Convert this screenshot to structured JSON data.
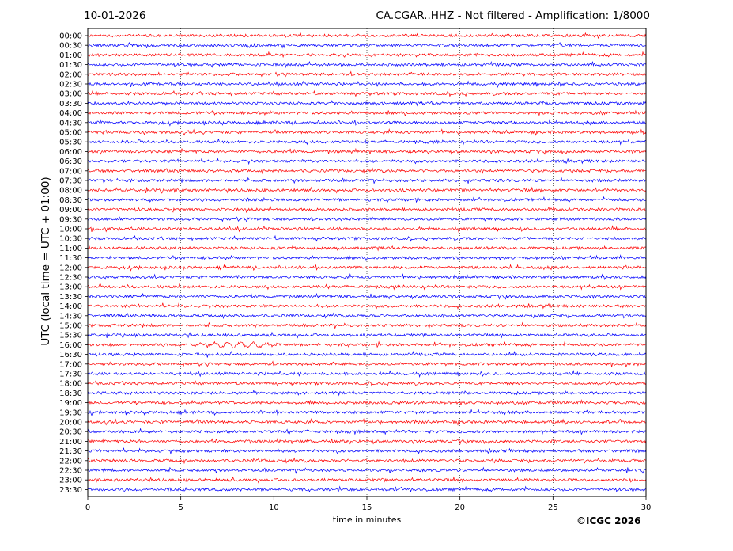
{
  "header": {
    "date": "10-01-2026",
    "title": "CA.CGAR..HHZ - Not filtered - Amplification: 1/8000"
  },
  "footer": {
    "copyright": "©ICGC 2026"
  },
  "chart_data": {
    "type": "line",
    "xlabel": "time in minutes",
    "ylabel": "UTC (local time = UTC + 01:00)",
    "xlim": [
      0,
      30
    ],
    "x_ticks": [
      0,
      5,
      10,
      15,
      20,
      25,
      30
    ],
    "grid": "vertical dotted lines at x ticks",
    "row_labels": [
      "00:00",
      "00:30",
      "01:00",
      "01:30",
      "02:00",
      "02:30",
      "03:00",
      "03:30",
      "04:00",
      "04:30",
      "05:00",
      "05:30",
      "06:00",
      "06:30",
      "07:00",
      "07:30",
      "08:00",
      "08:30",
      "09:00",
      "09:30",
      "10:00",
      "10:30",
      "11:00",
      "11:30",
      "12:00",
      "12:30",
      "13:00",
      "13:30",
      "14:00",
      "14:30",
      "15:00",
      "15:30",
      "16:00",
      "16:30",
      "17:00",
      "17:30",
      "18:00",
      "18:30",
      "19:00",
      "19:30",
      "20:00",
      "20:30",
      "21:00",
      "21:30",
      "22:00",
      "22:30",
      "23:00",
      "23:30"
    ],
    "trace_colors": [
      "#ff0000",
      "#0000ff"
    ],
    "notable_events": [
      {
        "row": "16:00",
        "x_range": [
          5,
          11
        ],
        "description_visible": false
      }
    ]
  }
}
